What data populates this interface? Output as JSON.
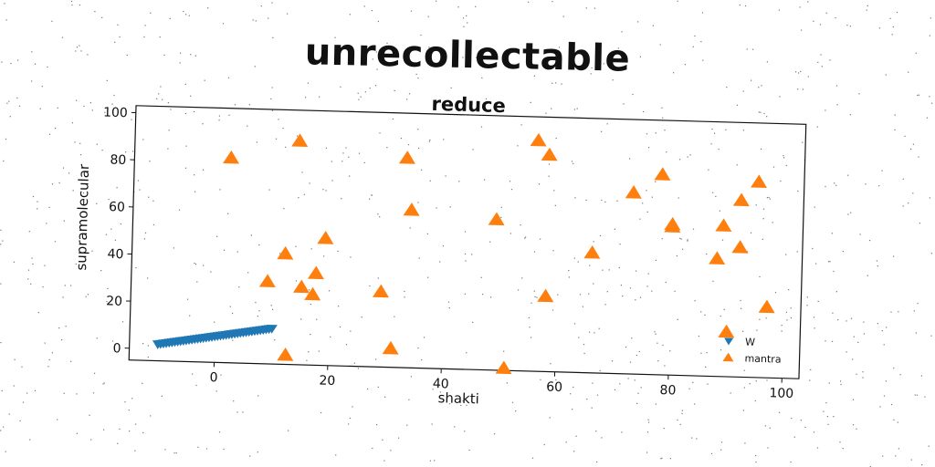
{
  "suptitle": "unrecollectable",
  "chart_data": {
    "type": "scatter",
    "title": "reduce",
    "xlabel": "shakti",
    "ylabel": "supramolecular",
    "xlim": [
      -15,
      103
    ],
    "ylim": [
      -5,
      103
    ],
    "xticks": [
      0,
      20,
      40,
      60,
      80,
      100
    ],
    "yticks": [
      0,
      20,
      40,
      60,
      80,
      100
    ],
    "grid": false,
    "legend_position": "bottom-right",
    "series": [
      {
        "name": "W",
        "marker": "triangle-down",
        "color": "#1f77b4",
        "points": [
          [
            -10,
            2
          ],
          [
            -9.5,
            2.2
          ],
          [
            -9,
            2.4
          ],
          [
            -8.5,
            2.6
          ],
          [
            -8,
            2.8
          ],
          [
            -7.5,
            3
          ],
          [
            -7,
            3.2
          ],
          [
            -6.5,
            3.4
          ],
          [
            -6,
            3.6
          ],
          [
            -5.5,
            3.8
          ],
          [
            -5,
            4
          ],
          [
            -4.5,
            4.2
          ],
          [
            -4,
            4.4
          ],
          [
            -3.5,
            4.6
          ],
          [
            -3,
            4.8
          ],
          [
            -2.5,
            5
          ],
          [
            -2,
            5.2
          ],
          [
            -1.5,
            5.4
          ],
          [
            -1,
            5.6
          ],
          [
            -0.5,
            5.8
          ],
          [
            0,
            6
          ],
          [
            0.5,
            6.2
          ],
          [
            1,
            6.4
          ],
          [
            1.5,
            6.6
          ],
          [
            2,
            6.8
          ],
          [
            2.5,
            7
          ],
          [
            3,
            7.2
          ],
          [
            3.5,
            7.4
          ],
          [
            4,
            7.6
          ],
          [
            4.5,
            7.8
          ],
          [
            5,
            8
          ],
          [
            5.5,
            8.2
          ],
          [
            6,
            8.4
          ],
          [
            6.5,
            8.6
          ],
          [
            7,
            8.8
          ],
          [
            7.5,
            9
          ],
          [
            8,
            9.2
          ],
          [
            8.5,
            9.4
          ],
          [
            9,
            9.6
          ],
          [
            9.5,
            9.8
          ],
          [
            10,
            10
          ]
        ]
      },
      {
        "name": "mantra",
        "marker": "triangle-up",
        "color": "#ff7f0e",
        "points": [
          [
            2,
            82
          ],
          [
            14,
            90
          ],
          [
            12,
            42
          ],
          [
            9,
            30
          ],
          [
            15,
            28
          ],
          [
            17,
            25
          ],
          [
            17.5,
            34
          ],
          [
            19,
            49
          ],
          [
            12.5,
            -1
          ],
          [
            29,
            27
          ],
          [
            31,
            3
          ],
          [
            33,
            84
          ],
          [
            34,
            62
          ],
          [
            49,
            59
          ],
          [
            51,
            -4
          ],
          [
            56,
            93
          ],
          [
            58,
            87
          ],
          [
            58,
            27
          ],
          [
            66,
            46
          ],
          [
            73,
            72
          ],
          [
            78,
            80
          ],
          [
            80,
            59
          ],
          [
            80,
            58
          ],
          [
            88,
            45
          ],
          [
            89,
            59
          ],
          [
            90,
            14
          ],
          [
            92,
            70
          ],
          [
            92,
            50
          ],
          [
            95,
            78
          ],
          [
            97,
            25
          ]
        ]
      }
    ]
  }
}
